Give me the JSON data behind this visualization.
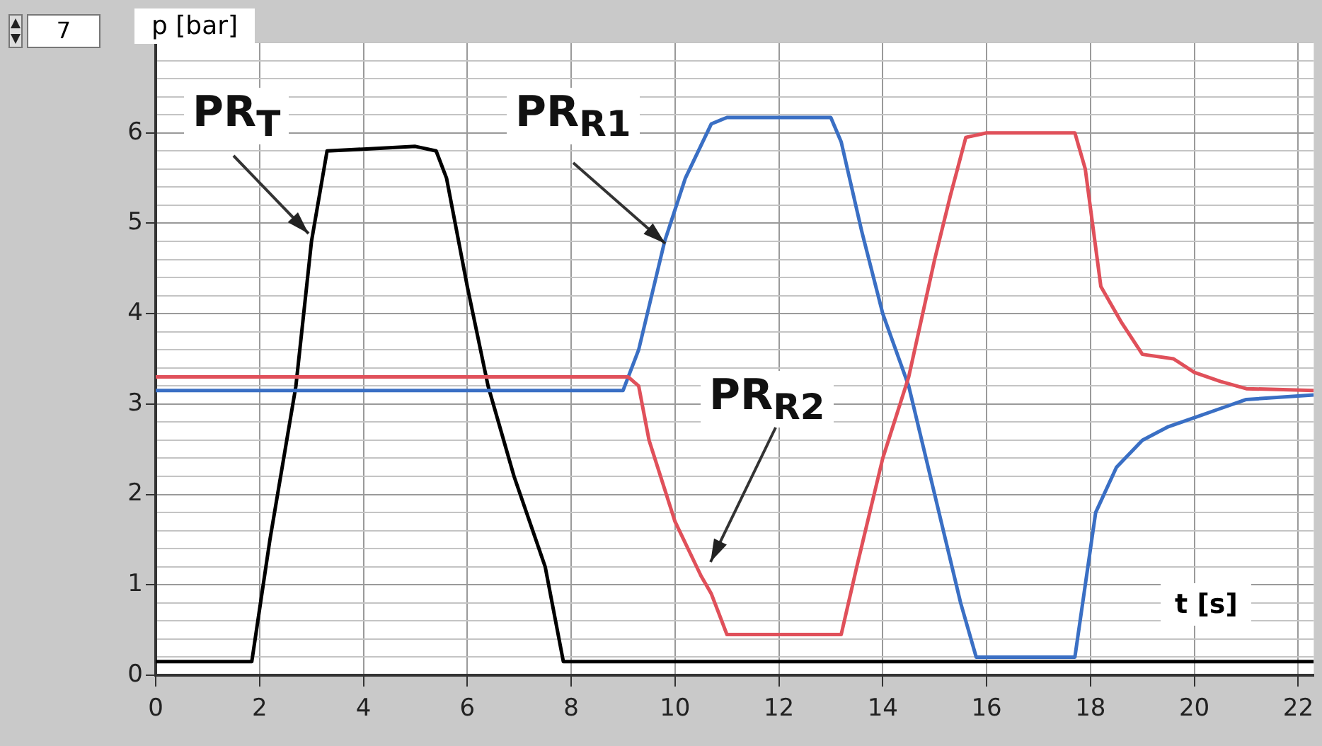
{
  "chart_data": {
    "type": "line",
    "xlabel": "t [s]",
    "ylabel": "p [bar]",
    "annotations": [
      "7"
    ],
    "xlim": [
      0,
      22.3
    ],
    "xticks": [
      0,
      2,
      4,
      6,
      8,
      10,
      12,
      14,
      16,
      18,
      20,
      22
    ],
    "ylim": [
      0,
      7
    ],
    "yticks": [
      0,
      {
        "value": 0.2,
        "label": null
      },
      {
        "value": 0.4,
        "label": null
      },
      {
        "value": 0.6,
        "label": null
      },
      {
        "value": 0.8,
        "label": null
      },
      1,
      {
        "value": 1.2,
        "label": null
      },
      {
        "value": 1.4,
        "label": null
      },
      {
        "value": 1.6,
        "label": null
      },
      {
        "value": 1.8,
        "label": null
      },
      2,
      {
        "value": 2.2,
        "label": null
      },
      {
        "value": 2.4,
        "label": null
      },
      {
        "value": 2.6,
        "label": null
      },
      {
        "value": 2.8,
        "label": null
      },
      3,
      {
        "value": 3.2,
        "label": null
      },
      {
        "value": 3.4,
        "label": null
      },
      {
        "value": 3.6,
        "label": null
      },
      {
        "value": 3.8,
        "label": null
      },
      4,
      {
        "value": 4.2,
        "label": null
      },
      {
        "value": 4.4,
        "label": null
      },
      {
        "value": 4.6,
        "label": null
      },
      {
        "value": 4.8,
        "label": null
      },
      5,
      {
        "value": 5.2,
        "label": null
      },
      {
        "value": 5.4,
        "label": null
      },
      {
        "value": 5.6,
        "label": null
      },
      {
        "value": 5.8,
        "label": null
      },
      6,
      {
        "value": 6.2,
        "label": null
      },
      {
        "value": 6.4,
        "label": null
      },
      {
        "value": 6.6,
        "label": null
      },
      {
        "value": 6.8,
        "label": null
      },
      {
        "value": 7,
        "label": null
      }
    ],
    "grid": true,
    "legend": false,
    "marker": "none",
    "line_style": "solid",
    "series": [
      {
        "name": "PR$_{T}$",
        "color": "#000000",
        "x": [
          0,
          1.85,
          2.2,
          2.7,
          3.0,
          3.3,
          4.0,
          5.0,
          5.4,
          5.6,
          6.0,
          6.4,
          6.9,
          7.5,
          7.85,
          22.3
        ],
        "values": [
          0.15,
          0.15,
          1.5,
          3.2,
          4.8,
          5.8,
          5.82,
          5.85,
          5.8,
          5.5,
          4.3,
          3.2,
          2.2,
          1.2,
          0.15,
          0.15
        ]
      },
      {
        "name": "PR$_{R1}$",
        "color": "#3a6fc4",
        "x": [
          0,
          9.0,
          9.3,
          9.8,
          10.2,
          10.7,
          11.0,
          13.0,
          13.2,
          13.6,
          14.0,
          14.5,
          15.0,
          15.5,
          15.8,
          17.7,
          17.8,
          18.1,
          18.5,
          19.0,
          19.5,
          20.0,
          20.5,
          21.0,
          22.3
        ],
        "values": [
          3.15,
          3.15,
          3.6,
          4.8,
          5.5,
          6.1,
          6.17,
          6.17,
          5.9,
          4.9,
          4.0,
          3.2,
          2.0,
          0.8,
          0.2,
          0.2,
          0.6,
          1.8,
          2.3,
          2.6,
          2.75,
          2.85,
          2.95,
          3.05,
          3.1
        ]
      },
      {
        "name": "PR$_{R2}$",
        "color": "#e0505a",
        "x": [
          0,
          9.1,
          9.3,
          9.5,
          10.0,
          10.5,
          10.7,
          11.0,
          13.2,
          13.5,
          14.0,
          14.5,
          15.0,
          15.3,
          15.6,
          16.0,
          17.7,
          17.9,
          18.2,
          18.6,
          19.0,
          19.6,
          20.0,
          20.5,
          21.0,
          22.3
        ],
        "values": [
          3.3,
          3.3,
          3.2,
          2.6,
          1.7,
          1.1,
          0.9,
          0.45,
          0.45,
          1.2,
          2.4,
          3.3,
          4.6,
          5.3,
          5.95,
          6.0,
          6.0,
          5.6,
          4.3,
          3.9,
          3.55,
          3.5,
          3.35,
          3.25,
          3.17,
          3.15
        ]
      }
    ]
  }
}
